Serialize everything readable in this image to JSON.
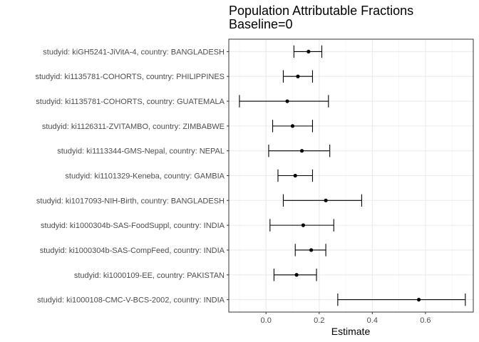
{
  "chart_data": {
    "type": "scatter",
    "title": "Population Attributable Fractions",
    "subtitle": "Baseline=0",
    "xlabel": "Estimate",
    "ylabel": "",
    "xlim": [
      -0.14,
      0.78
    ],
    "xticks": [
      0.0,
      0.2,
      0.4,
      0.6
    ],
    "xtick_labels": [
      "0.0",
      "0.2",
      "0.4",
      "0.6"
    ],
    "grid": true,
    "legend": "none",
    "point_color": "#000000",
    "categories": [
      "studyid: kiGH5241-JiVitA-4, country: BANGLADESH",
      "studyid: ki1135781-COHORTS, country: PHILIPPINES",
      "studyid: ki1135781-COHORTS, country: GUATEMALA",
      "studyid: ki1126311-ZVITAMBO, country: ZIMBABWE",
      "studyid: ki1113344-GMS-Nepal, country: NEPAL",
      "studyid: ki1101329-Keneba, country: GAMBIA",
      "studyid: ki1017093-NIH-Birth, country: BANGLADESH",
      "studyid: ki1000304b-SAS-FoodSuppl, country: INDIA",
      "studyid: ki1000304b-SAS-CompFeed, country: INDIA",
      "studyid: ki1000109-EE, country: PAKISTAN",
      "studyid: ki1000108-CMC-V-BCS-2002, country: INDIA"
    ],
    "estimates": [
      0.16,
      0.12,
      0.08,
      0.1,
      0.135,
      0.11,
      0.225,
      0.14,
      0.17,
      0.115,
      0.575
    ],
    "lower": [
      0.105,
      0.065,
      -0.1,
      0.025,
      0.01,
      0.045,
      0.065,
      0.015,
      0.11,
      0.03,
      0.27
    ],
    "upper": [
      0.21,
      0.175,
      0.235,
      0.175,
      0.24,
      0.175,
      0.36,
      0.255,
      0.225,
      0.19,
      0.75
    ]
  }
}
